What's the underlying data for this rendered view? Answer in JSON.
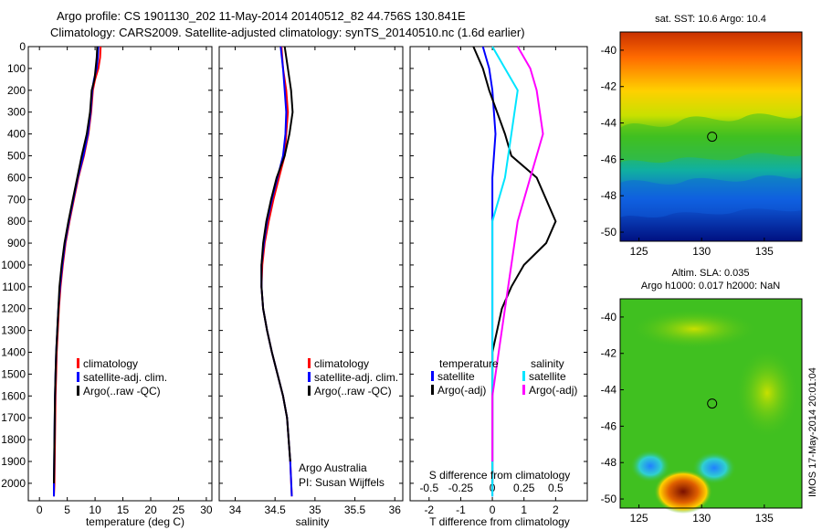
{
  "header": {
    "line1": "Argo profile: CS 1901130_202 11-May-2014 20140512_82 44.756S 130.841E",
    "line2": "Climatology: CARS2009. Satellite-adjusted climatology: synTS_20140510.nc (1.6d earlier)"
  },
  "colors": {
    "climatology": "#ff0000",
    "satellite": "#0000ff",
    "argo": "#000000",
    "salinity_satellite": "#00e5ff",
    "salinity_argo": "#ff00ff"
  },
  "panels": {
    "temperature": {
      "xlabel": "temperature (deg C)",
      "legend": [
        "climatology",
        "satellite-adj. clim.",
        "Argo(..raw -QC)"
      ]
    },
    "salinity": {
      "xlabel": "salinity",
      "legend": [
        "climatology",
        "satellite-adj. clim.",
        "Argo(..raw -QC)"
      ],
      "note1": "Argo Australia",
      "note2": "PI: Susan Wijffels"
    },
    "difference": {
      "xlabel": "T difference from climatology",
      "xlabel_top": "S difference from climatology",
      "legend_left_title": "temperature",
      "legend_left": [
        "satellite",
        "Argo(-adj)"
      ],
      "legend_right_title": "salinity",
      "legend_right": [
        "satellite",
        "Argo(-adj)"
      ]
    },
    "sst_map": {
      "title": "sat. SST: 10.6  Argo: 10.4",
      "xticks": [
        "125",
        "130",
        "135"
      ],
      "yticks": [
        "-40",
        "-42",
        "-44",
        "-46",
        "-48",
        "-50"
      ]
    },
    "sla_map": {
      "title1": "Altim. SLA: 0.035",
      "title2": "Argo h1000: 0.017 h2000: NaN",
      "xticks": [
        "125",
        "130",
        "135"
      ],
      "yticks": [
        "-40",
        "-42",
        "-44",
        "-46",
        "-48",
        "-50"
      ]
    }
  },
  "watermark": "IMOS 17-May-2014 20:01:04",
  "chart_data": [
    {
      "type": "line",
      "name": "temperature",
      "xlabel": "temperature (deg C)",
      "ylabel": "",
      "xlim": [
        -2,
        31
      ],
      "ylim": [
        2080,
        0
      ],
      "xticks": [
        0,
        5,
        10,
        15,
        20,
        25,
        30
      ],
      "yticks": [
        0,
        100,
        200,
        300,
        400,
        500,
        600,
        700,
        800,
        900,
        1000,
        1100,
        1200,
        1300,
        1400,
        1500,
        1600,
        1700,
        1800,
        1900,
        2000
      ],
      "series": [
        {
          "name": "climatology",
          "color": "#ff0000",
          "x": [
            11.0,
            10.9,
            10.6,
            10.0,
            9.6,
            9.3,
            8.8,
            8.0,
            7.0,
            6.2,
            5.4,
            4.7,
            4.2,
            3.8,
            3.5,
            3.3,
            3.1,
            3.0,
            2.9,
            2.8,
            2.7,
            2.6
          ],
          "y": [
            0,
            50,
            100,
            150,
            200,
            300,
            400,
            500,
            600,
            700,
            800,
            900,
            1000,
            1100,
            1200,
            1300,
            1400,
            1500,
            1600,
            1800,
            2000,
            2060
          ]
        },
        {
          "name": "satellite-adj. clim.",
          "color": "#0000ff",
          "x": [
            10.6,
            10.5,
            10.3,
            9.8,
            9.5,
            9.2,
            8.7,
            7.9,
            6.9,
            6.1,
            5.3,
            4.6,
            4.1,
            3.7,
            3.4,
            3.2,
            3.0,
            2.9,
            2.8,
            2.7,
            2.6,
            2.6
          ],
          "y": [
            0,
            50,
            100,
            150,
            200,
            300,
            400,
            500,
            600,
            700,
            800,
            900,
            1000,
            1100,
            1200,
            1300,
            1400,
            1500,
            1600,
            1800,
            2000,
            2060
          ]
        },
        {
          "name": "Argo(..raw -QC)",
          "color": "#000000",
          "x": [
            10.4,
            10.3,
            10.1,
            9.9,
            9.4,
            9.1,
            8.5,
            7.6,
            6.8,
            6.0,
            5.2,
            4.5,
            4.0,
            3.6,
            3.4,
            3.2,
            3.0,
            2.9,
            2.8,
            2.7,
            2.6
          ],
          "y": [
            0,
            50,
            100,
            150,
            200,
            300,
            400,
            500,
            600,
            700,
            800,
            900,
            1000,
            1100,
            1200,
            1300,
            1400,
            1500,
            1600,
            1800,
            2000
          ]
        }
      ]
    },
    {
      "type": "line",
      "name": "salinity",
      "xlabel": "salinity",
      "ylabel": "",
      "xlim": [
        33.8,
        36.1
      ],
      "ylim": [
        2080,
        0
      ],
      "xticks": [
        34,
        34.5,
        35,
        35.5,
        36
      ],
      "series": [
        {
          "name": "climatology",
          "color": "#ff0000",
          "x": [
            34.58,
            34.6,
            34.64,
            34.66,
            34.64,
            34.62,
            34.55,
            34.48,
            34.42,
            34.37,
            34.34,
            34.33,
            34.35,
            34.4,
            34.46,
            34.53,
            34.6,
            34.65,
            34.69,
            34.71
          ],
          "y": [
            0,
            100,
            200,
            300,
            400,
            500,
            600,
            700,
            800,
            900,
            1000,
            1100,
            1200,
            1300,
            1400,
            1500,
            1600,
            1700,
            1900,
            2060
          ]
        },
        {
          "name": "satellite-adj. clim.",
          "color": "#0000ff",
          "x": [
            34.57,
            34.6,
            34.62,
            34.64,
            34.63,
            34.6,
            34.53,
            34.46,
            34.4,
            34.36,
            34.33,
            34.33,
            34.35,
            34.4,
            34.46,
            34.53,
            34.6,
            34.65,
            34.69,
            34.71
          ],
          "y": [
            0,
            100,
            200,
            300,
            400,
            500,
            600,
            700,
            800,
            900,
            1000,
            1100,
            1200,
            1300,
            1400,
            1500,
            1600,
            1700,
            1900,
            2060
          ]
        },
        {
          "name": "Argo(..raw -QC)",
          "color": "#000000",
          "x": [
            34.62,
            34.66,
            34.7,
            34.72,
            34.68,
            34.62,
            34.52,
            34.45,
            34.39,
            34.35,
            34.33,
            34.33,
            34.35,
            34.4,
            34.46,
            34.53,
            34.6,
            34.65,
            34.69
          ],
          "y": [
            0,
            100,
            200,
            300,
            400,
            500,
            600,
            700,
            800,
            900,
            1000,
            1100,
            1200,
            1300,
            1400,
            1500,
            1600,
            1700,
            1900
          ]
        }
      ]
    },
    {
      "type": "line",
      "name": "difference from climatology",
      "xlabel": "T difference from climatology",
      "xlabel_top": "S difference from climatology",
      "xlim": [
        -2.6,
        3.0
      ],
      "ylim": [
        2080,
        0
      ],
      "xticks": [
        -2,
        -1,
        0,
        1,
        2
      ],
      "xticks_top": [
        -0.5,
        -0.25,
        0,
        0.25,
        0.5
      ],
      "series": [
        {
          "name": "temperature satellite",
          "color": "#0000ff",
          "x": [
            -0.3,
            -0.1,
            0.0,
            0.1,
            0.0,
            0.0,
            0.0,
            0.0,
            0.0,
            0.0
          ],
          "y": [
            0,
            100,
            200,
            400,
            600,
            800,
            1000,
            1400,
            1800,
            2060
          ]
        },
        {
          "name": "temperature Argo(-adj)",
          "color": "#000000",
          "x": [
            -0.6,
            -0.3,
            -0.1,
            0.4,
            0.6,
            1.4,
            2.0,
            1.7,
            1.0,
            0.6,
            0.3,
            0.0,
            0.0,
            0.0
          ],
          "y": [
            0,
            100,
            200,
            400,
            500,
            600,
            800,
            900,
            1000,
            1100,
            1200,
            1400,
            1800,
            2000
          ]
        },
        {
          "name": "salinity satellite",
          "color": "#00e5ff",
          "x": [
            0.0,
            0.1,
            0.2,
            0.15,
            0.1,
            0.0,
            0.0,
            0.0,
            0.0
          ],
          "y": [
            0,
            100,
            200,
            400,
            600,
            800,
            1200,
            1600,
            2060
          ]
        },
        {
          "name": "salinity Argo(-adj)",
          "color": "#ff00ff",
          "x": [
            0.2,
            0.3,
            0.35,
            0.4,
            0.3,
            0.2,
            0.1,
            0.0,
            0.0
          ],
          "y": [
            0,
            100,
            200,
            400,
            600,
            800,
            1200,
            1600,
            1900
          ]
        }
      ]
    },
    {
      "type": "heatmap",
      "name": "sat. SST map",
      "title": "sat. SST: 10.6  Argo: 10.4",
      "xlim": [
        123.5,
        138
      ],
      "ylim": [
        -50.5,
        -39
      ],
      "xticks": [
        125,
        130,
        135
      ],
      "yticks": [
        -40,
        -42,
        -44,
        -46,
        -48,
        -50
      ],
      "marker": {
        "lon": 130.841,
        "lat": -44.756
      }
    },
    {
      "type": "heatmap",
      "name": "Altim. SLA map",
      "title": "Altim. SLA: 0.035",
      "xlim": [
        123.5,
        138
      ],
      "ylim": [
        -50.5,
        -39
      ],
      "xticks": [
        125,
        130,
        135
      ],
      "yticks": [
        -40,
        -42,
        -44,
        -46,
        -48,
        -50
      ],
      "marker": {
        "lon": 130.841,
        "lat": -44.756
      }
    }
  ]
}
